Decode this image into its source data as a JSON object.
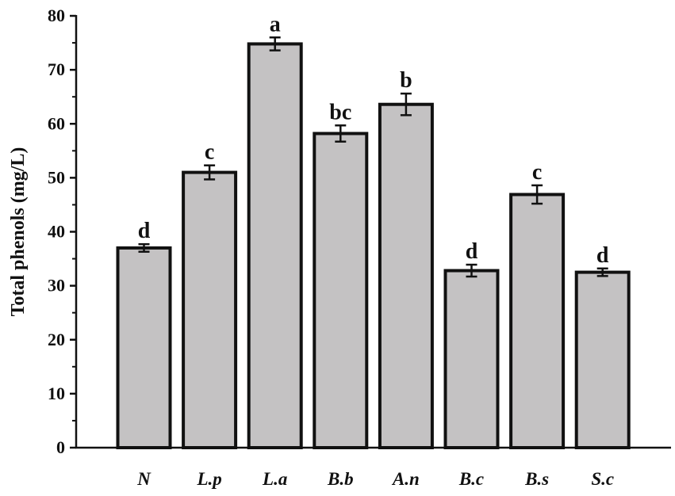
{
  "chart_data": {
    "type": "bar",
    "title": "",
    "xlabel": "",
    "ylabel": "Total phenols (mg/L)",
    "ylim": [
      0,
      80
    ],
    "yticks": [
      0,
      10,
      20,
      30,
      40,
      50,
      60,
      70,
      80
    ],
    "grid": false,
    "legend": "none",
    "bar_color": "#c4c2c3",
    "bar_edge_color": "#111111",
    "categories": [
      "N",
      "L.p",
      "L.a",
      "B.b",
      "A.n",
      "B.c",
      "B.s",
      "S.c"
    ],
    "values": [
      37.0,
      51.0,
      74.8,
      58.2,
      63.6,
      32.8,
      46.9,
      32.5
    ],
    "errors": [
      0.7,
      1.3,
      1.2,
      1.5,
      2.0,
      1.1,
      1.7,
      0.7
    ],
    "significance": [
      "d",
      "c",
      "a",
      "bc",
      "b",
      "d",
      "c",
      "d"
    ]
  }
}
